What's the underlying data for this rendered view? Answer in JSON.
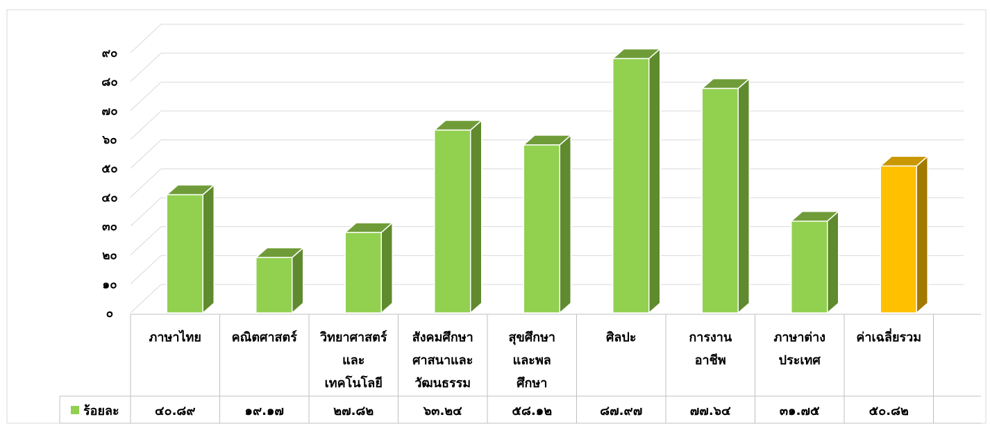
{
  "chart_data": {
    "type": "bar",
    "categories": [
      [
        "ภาษาไทย"
      ],
      [
        "คณิตศาสตร์"
      ],
      [
        "วิทยาศาสตร์",
        "และ",
        "เทคโนโลยี"
      ],
      [
        "สังคมศึกษา",
        "ศาสนาและ",
        "วัฒนธรรม"
      ],
      [
        "สุขศึกษา",
        "และพล",
        "ศึกษา"
      ],
      [
        "ศิลปะ"
      ],
      [
        "การงาน",
        "อาชีพ"
      ],
      [
        "ภาษาต่าง",
        "ประเทศ"
      ],
      [
        "ค่าเฉลี่ยรวม"
      ]
    ],
    "values": [
      40.89,
      19.17,
      27.82,
      63.24,
      58.12,
      87.97,
      77.64,
      31.75,
      50.82
    ],
    "value_labels": [
      "๔๐.๘๙",
      "๑๙.๑๗",
      "๒๗.๘๒",
      "๖๓.๒๔",
      "๕๘.๑๒",
      "๘๗.๙๗",
      "๗๗.๖๔",
      "๓๑.๗๕",
      "๕๐.๘๒"
    ],
    "series_name": "ร้อยละ",
    "y_ticks": [
      "๐",
      "๑๐",
      "๒๐",
      "๓๐",
      "๔๐",
      "๕๐",
      "๖๐",
      "๗๐",
      "๘๐",
      "๙๐"
    ],
    "ylim": [
      0,
      90
    ],
    "grid": true,
    "legend": "data-table",
    "colors": {
      "bar_front": "#92d050",
      "bar_side": "#5f8a2e",
      "bar_top": "#6f9c38",
      "highlight_front": "#ffc000",
      "highlight_side": "#a27a00",
      "highlight_top": "#c99800",
      "grid": "#d9d9d9",
      "table_border": "#bfbfbf",
      "text": "#000000"
    },
    "highlight_index": 8
  }
}
